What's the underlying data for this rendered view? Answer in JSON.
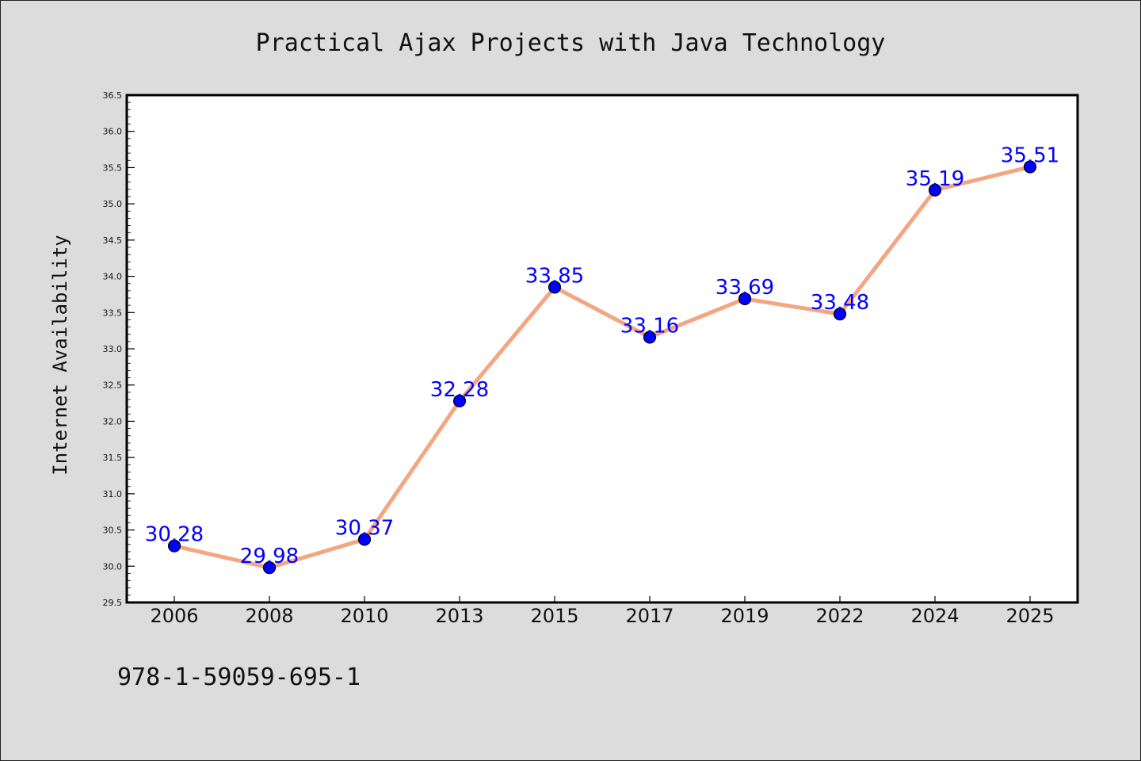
{
  "chart_data": {
    "type": "line",
    "title": "Practical Ajax Projects with Java Technology",
    "ylabel": "Internet Availability",
    "xlabel": "",
    "categories": [
      "2006",
      "2008",
      "2010",
      "2013",
      "2015",
      "2017",
      "2019",
      "2022",
      "2024",
      "2025"
    ],
    "series": [
      {
        "values": [
          30.28,
          29.98,
          30.37,
          32.28,
          33.85,
          33.16,
          33.69,
          33.48,
          35.19,
          35.51
        ]
      }
    ],
    "data_labels": [
      "30.28",
      "29.98",
      "30.37",
      "32.28",
      "33.85",
      "33.16",
      "33.69",
      "33.48",
      "35.19",
      "35.51"
    ],
    "ylim": [
      29.5,
      36.5
    ],
    "yticks": [
      "29.5",
      "30.0",
      "30.5",
      "31.0",
      "31.5",
      "32.0",
      "32.5",
      "33.0",
      "33.5",
      "34.0",
      "34.5",
      "35.0",
      "35.5",
      "36.0",
      "36.5"
    ],
    "grid": false,
    "line_color": "#f4a582",
    "marker_color": "#0000ff",
    "label_color": "#0000ff",
    "background_color": "#dcdcdc",
    "plot_background_color": "#ffffff"
  },
  "footnote": "978-1-59059-695-1"
}
